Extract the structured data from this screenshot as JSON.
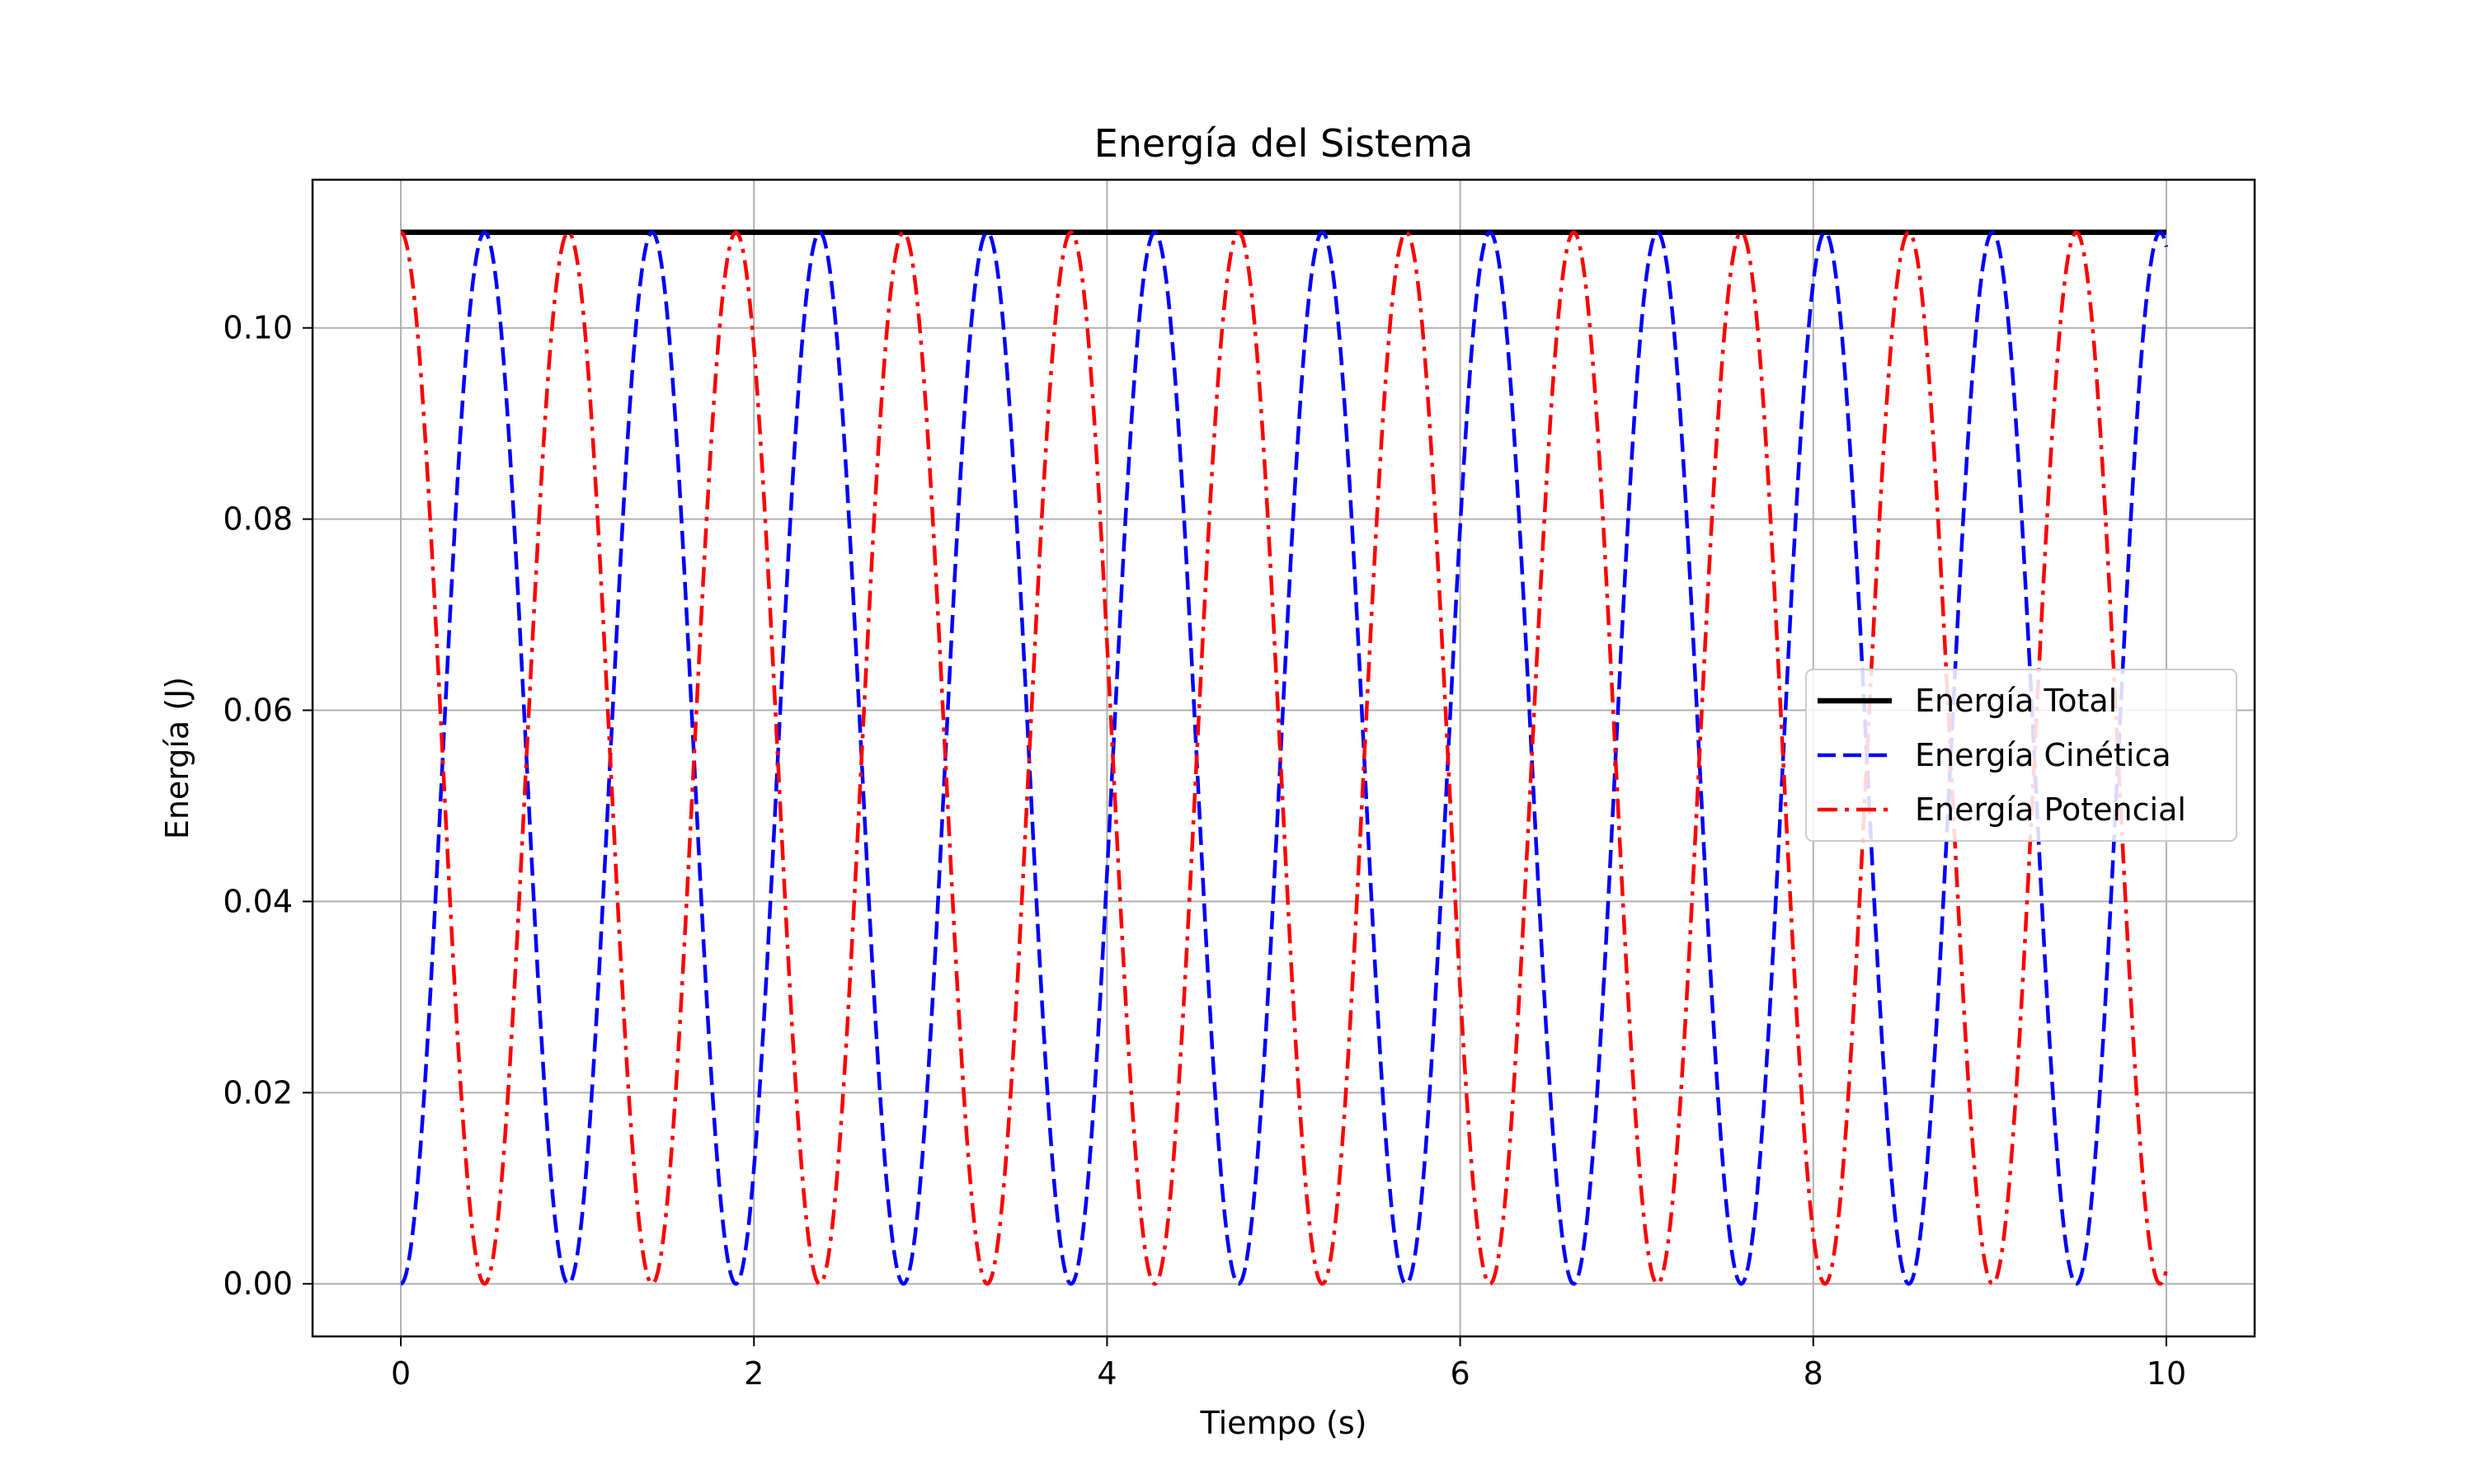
{
  "chart_data": {
    "type": "line",
    "title": "Energía del Sistema",
    "xlabel": "Tiempo (s)",
    "ylabel": "Energía (J)",
    "xlim": [
      -0.5,
      10.5
    ],
    "ylim": [
      -0.0055,
      0.1155
    ],
    "x_ticks": [
      0,
      2,
      4,
      6,
      8,
      10
    ],
    "x_tick_labels": [
      "0",
      "2",
      "4",
      "6",
      "8",
      "10"
    ],
    "y_ticks": [
      0.0,
      0.02,
      0.04,
      0.06,
      0.08,
      0.1
    ],
    "y_tick_labels": [
      "0.00",
      "0.02",
      "0.04",
      "0.06",
      "0.08",
      "0.10"
    ],
    "grid": true,
    "legend_position": "center-right",
    "x_range": [
      0,
      10
    ],
    "series": [
      {
        "name": "Energía Total",
        "color": "#000000",
        "style": "solid",
        "model": "constant",
        "amplitude": 0.11
      },
      {
        "name": "Energía Cinética",
        "color": "#0000ff",
        "style": "dashed",
        "model": "sin_squared",
        "amplitude": 0.11,
        "period_s": 0.949
      },
      {
        "name": "Energía Potencial",
        "color": "#ff0000",
        "style": "dashdot",
        "model": "cos_squared",
        "amplitude": 0.11,
        "period_s": 0.949
      }
    ]
  }
}
